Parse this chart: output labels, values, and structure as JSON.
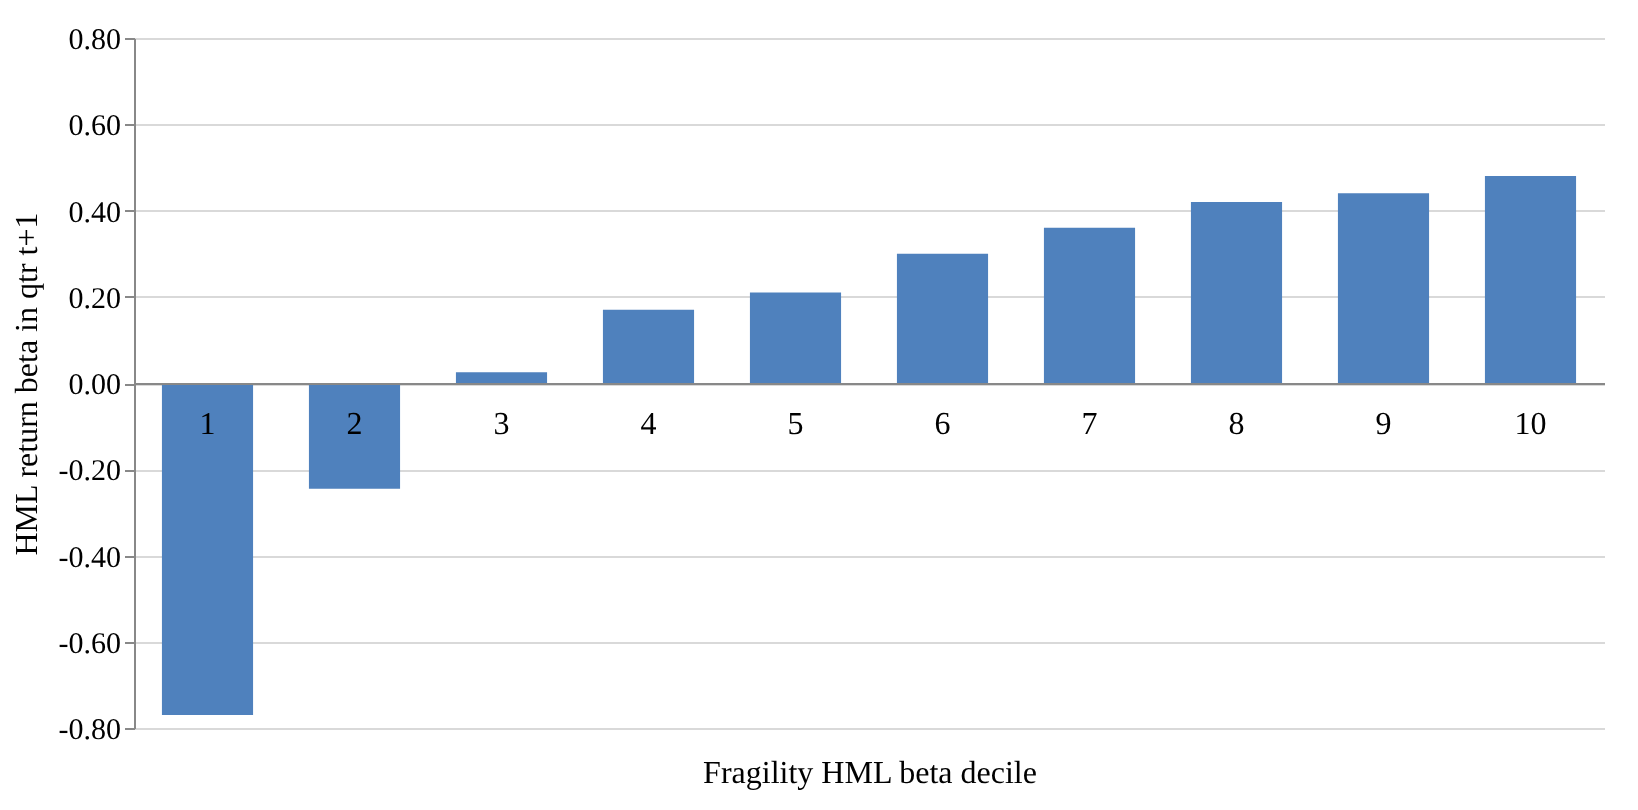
{
  "chart_data": {
    "type": "bar",
    "xlabel": "Fragility HML beta decile",
    "ylabel": "HML return beta in qtr t+1",
    "categories": [
      "1",
      "2",
      "3",
      "4",
      "5",
      "6",
      "7",
      "8",
      "9",
      "10"
    ],
    "values": [
      -0.77,
      -0.245,
      0.025,
      0.17,
      0.21,
      0.3,
      0.36,
      0.42,
      0.44,
      0.48
    ],
    "color": "#4f81bd",
    "ylim": [
      -0.8,
      0.8
    ],
    "yticks": [
      {
        "value": -0.8,
        "label": "-0.80"
      },
      {
        "value": -0.6,
        "label": "-0.60"
      },
      {
        "value": -0.4,
        "label": "-0.40"
      },
      {
        "value": -0.2,
        "label": "-0.20"
      },
      {
        "value": 0,
        "label": "0.00"
      },
      {
        "value": 0.2,
        "label": "0.20"
      },
      {
        "value": 0.4,
        "label": "0.40"
      },
      {
        "value": 0.6,
        "label": "0.60"
      },
      {
        "value": 0.8,
        "label": "0.80"
      }
    ],
    "grid": "y"
  }
}
